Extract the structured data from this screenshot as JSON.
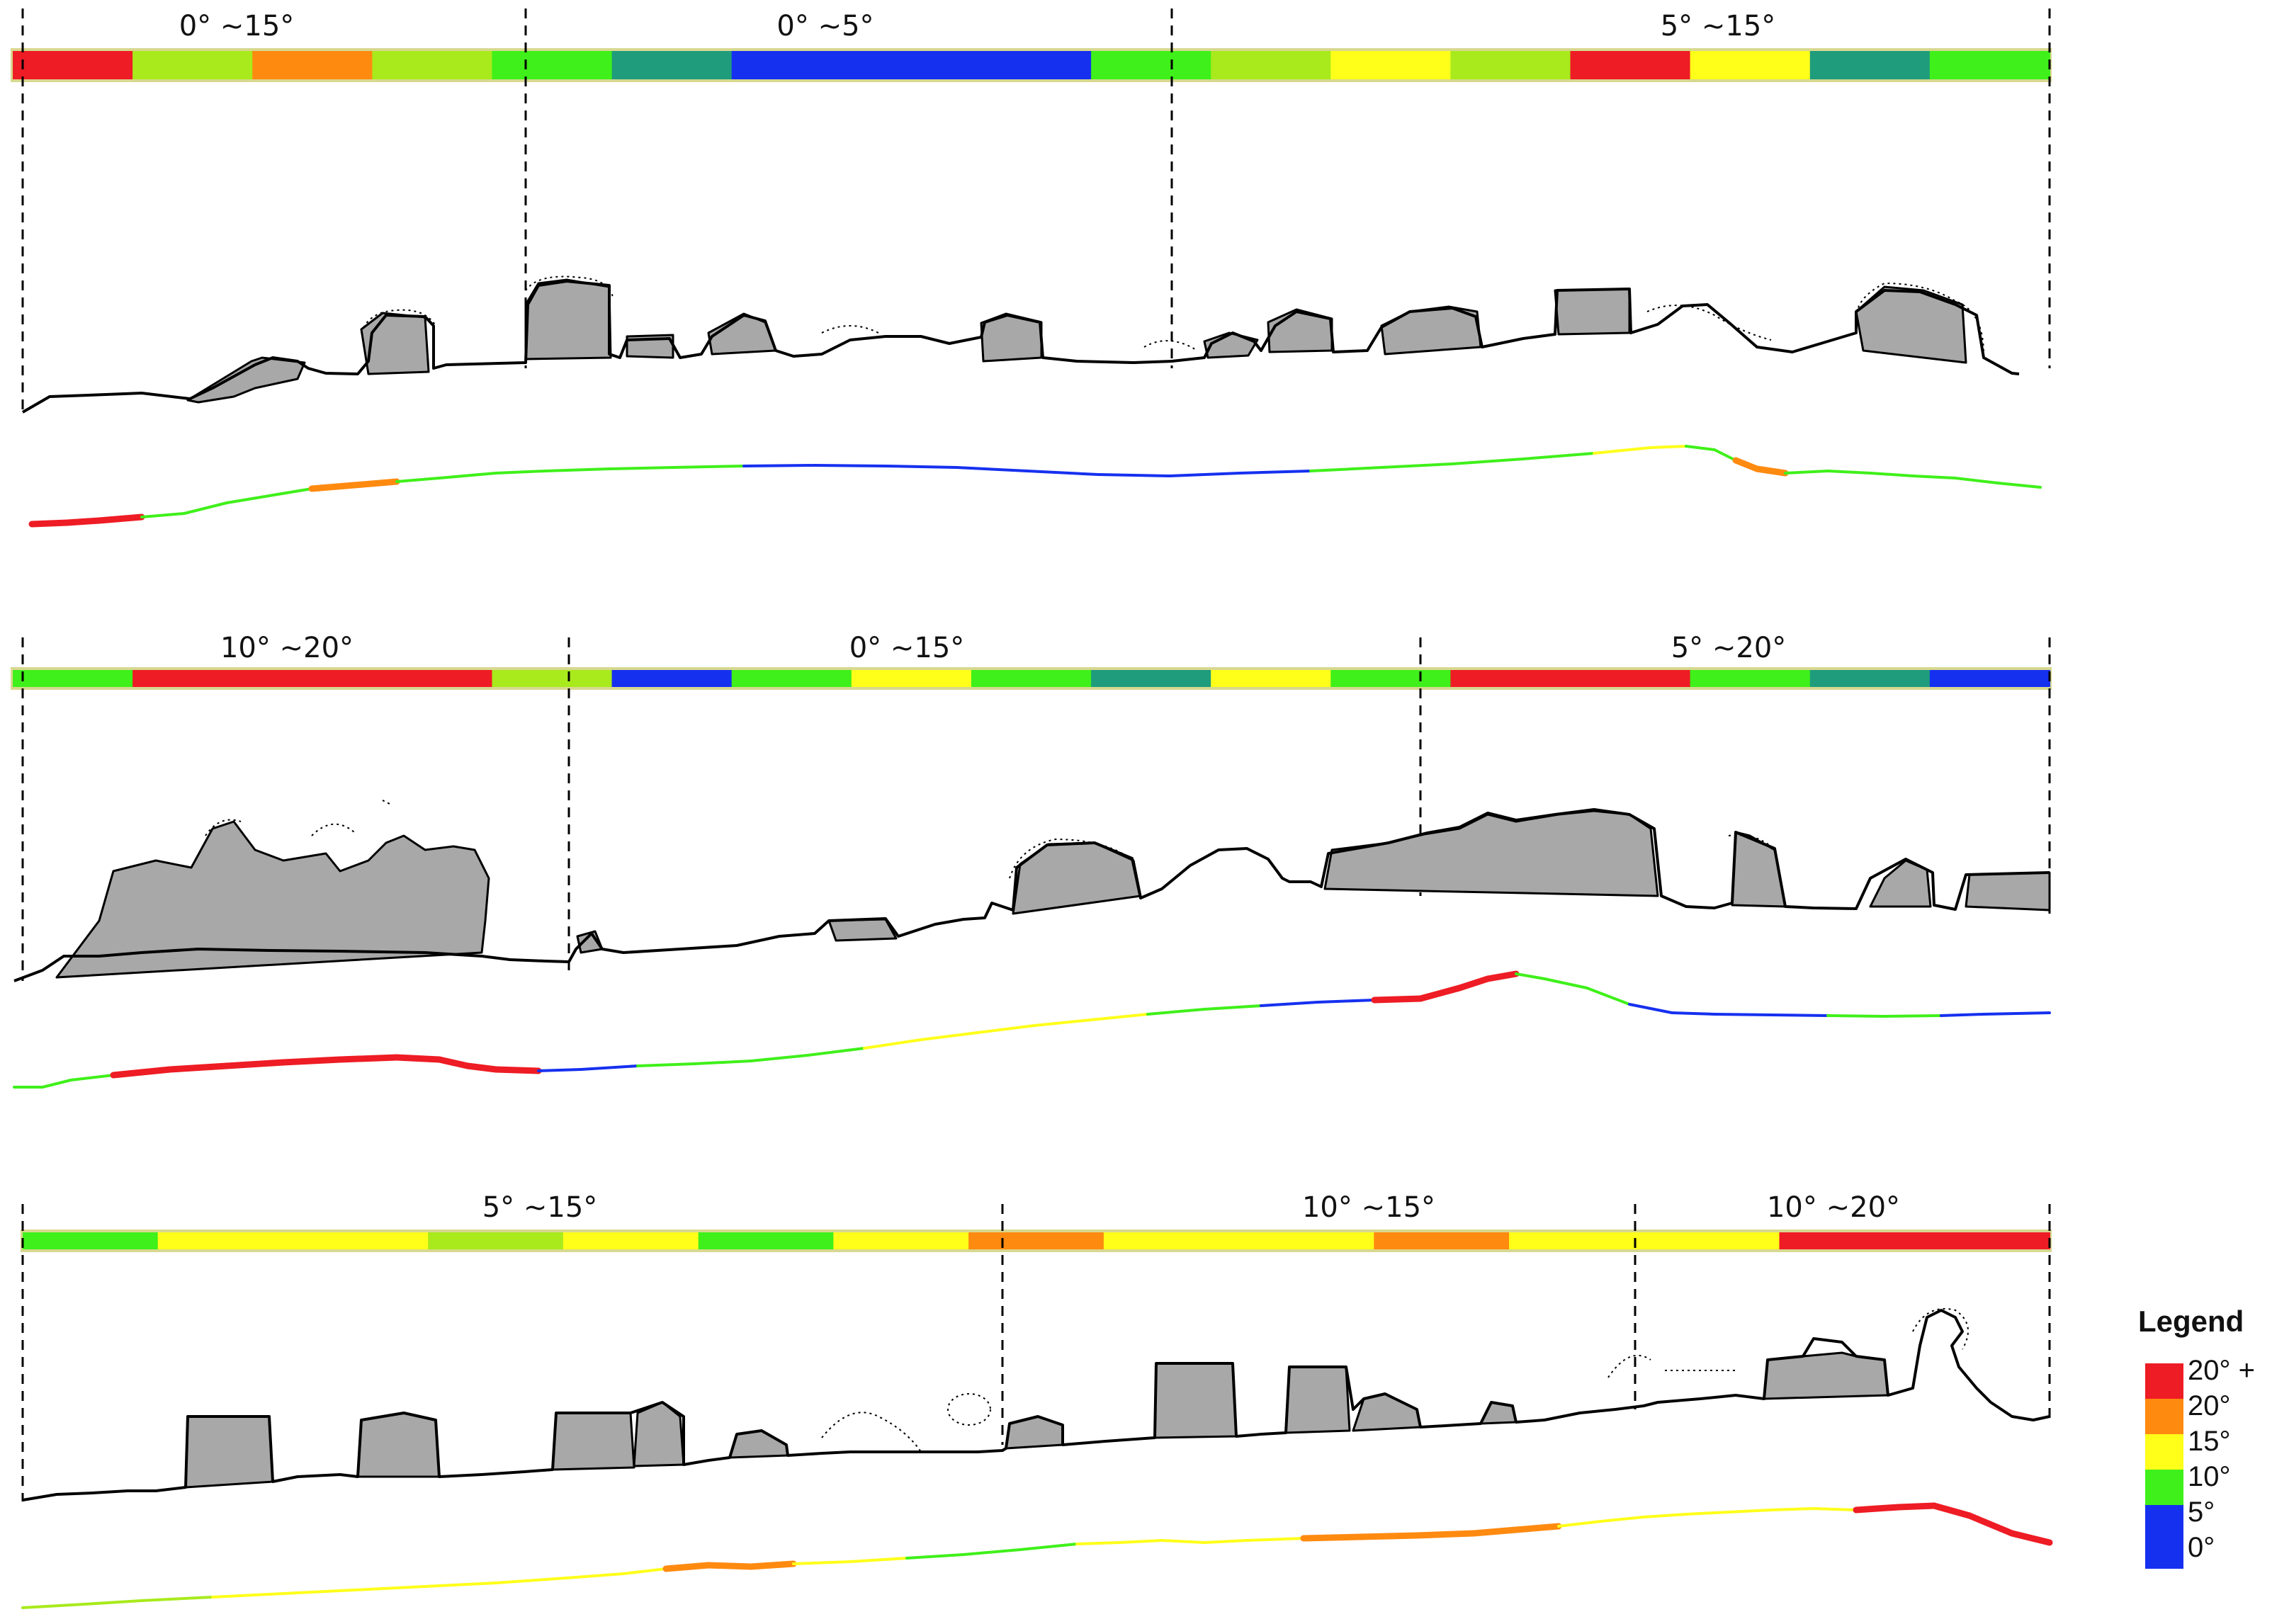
{
  "palette": {
    "red": "#ee1c24",
    "orange": "#ff8a10",
    "yellow": "#ffff1a",
    "lime": "#a8ea1c",
    "green": "#3ff01a",
    "teal": "#1f9c7c",
    "blue": "#1630f0",
    "gray": "#a8a8a8",
    "outline": "#000000"
  },
  "legend": {
    "title": "Legend",
    "items": [
      {
        "label": "20° +",
        "color": "#ee1c24"
      },
      {
        "label": "20°",
        "color": "#ff8a10"
      },
      {
        "label": "15°",
        "color": "#ffff1a"
      },
      {
        "label": "10°",
        "color": "#3ff01a"
      },
      {
        "label": "5°",
        "color": "#1630f0"
      },
      {
        "label": "0°",
        "color": "#1630f0"
      }
    ]
  },
  "panels": [
    {
      "id": "panel-1",
      "segments": [
        {
          "label": "0° ~15°"
        },
        {
          "label": "0° ~5°"
        },
        {
          "label": "5° ~15°"
        }
      ],
      "bar_colors": [
        "red",
        "lime",
        "orange",
        "lime",
        "green",
        "teal",
        "blue",
        "blue",
        "blue",
        "green",
        "lime",
        "yellow",
        "lime",
        "red",
        "yellow",
        "teal",
        "green"
      ],
      "profile_colors": [
        "red",
        "green",
        "green",
        "orange",
        "green",
        "green",
        "green",
        "blue",
        "blue",
        "blue",
        "blue",
        "green",
        "green",
        "yellow",
        "green",
        "orange",
        "green",
        "green",
        "green"
      ]
    },
    {
      "id": "panel-2",
      "segments": [
        {
          "label": "10° ~20°"
        },
        {
          "label": "0° ~15°"
        },
        {
          "label": "5° ~20°"
        }
      ],
      "bar_colors": [
        "green",
        "red",
        "red",
        "red",
        "lime",
        "blue",
        "green",
        "yellow",
        "green",
        "teal",
        "yellow",
        "green",
        "red",
        "red",
        "green",
        "teal",
        "blue"
      ],
      "profile_colors": [
        "green",
        "red",
        "red",
        "red",
        "red",
        "blue",
        "green",
        "green",
        "yellow",
        "yellow",
        "green",
        "blue",
        "red",
        "red",
        "green",
        "blue",
        "blue",
        "green",
        "blue"
      ]
    },
    {
      "id": "panel-3",
      "segments": [
        {
          "label": "5° ~15°"
        },
        {
          "label": "10° ~15°"
        },
        {
          "label": "10° ~20°"
        }
      ],
      "bar_colors": [
        "green",
        "yellow",
        "yellow",
        "lime",
        "yellow",
        "green",
        "yellow",
        "orange",
        "yellow",
        "yellow",
        "orange",
        "yellow",
        "yellow",
        "red",
        "red"
      ],
      "profile_colors": [
        "lime",
        "yellow",
        "yellow",
        "yellow",
        "orange",
        "yellow",
        "green",
        "yellow",
        "yellow",
        "orange",
        "orange",
        "yellow",
        "yellow",
        "yellow",
        "red",
        "red"
      ]
    }
  ]
}
